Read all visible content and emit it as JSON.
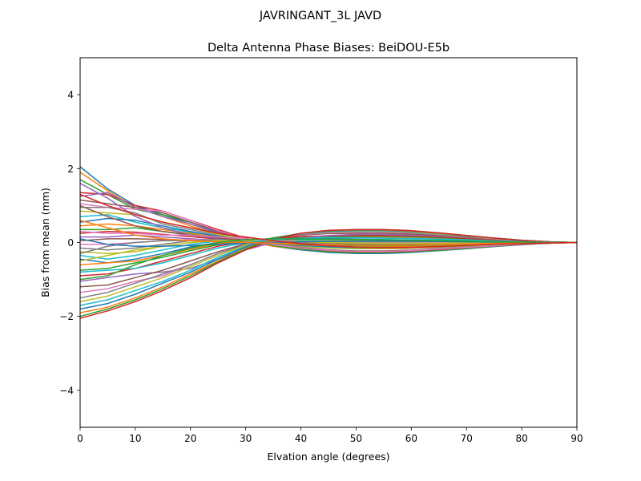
{
  "chart_data": {
    "type": "line",
    "suptitle": "JAVRINGANT_3L    JAVD",
    "title": "Delta Antenna Phase Biases: BeiDOU-E5b",
    "xlabel": "Elvation angle (degrees)",
    "ylabel": "Bias from mean (mm)",
    "xlim": [
      0,
      90
    ],
    "ylim": [
      -5,
      5
    ],
    "xticks": [
      0,
      10,
      20,
      30,
      40,
      50,
      60,
      70,
      80,
      90
    ],
    "yticks": [
      -4,
      -2,
      0,
      2,
      4
    ],
    "ytick_labels": [
      "−4",
      "−2",
      "0",
      "2",
      "4"
    ],
    "grid": false,
    "legend": "none",
    "x": [
      0,
      5,
      10,
      15,
      20,
      25,
      30,
      35,
      40,
      45,
      50,
      55,
      60,
      65,
      70,
      75,
      80,
      85,
      90
    ],
    "series_colors": [
      "#1f77b4",
      "#ff7f0e",
      "#2ca02c",
      "#d62728",
      "#9467bd",
      "#8c564b",
      "#e377c2",
      "#7f7f7f",
      "#bcbd22",
      "#17becf"
    ],
    "series": [
      {
        "values": [
          2.05,
          1.45,
          1.0,
          0.75,
          0.5,
          0.25,
          0.05,
          -0.1,
          -0.2,
          -0.27,
          -0.3,
          -0.3,
          -0.27,
          -0.22,
          -0.17,
          -0.11,
          -0.06,
          -0.02,
          0
        ]
      },
      {
        "values": [
          1.9,
          1.4,
          0.95,
          0.7,
          0.45,
          0.22,
          0.04,
          -0.1,
          -0.18,
          -0.24,
          -0.27,
          -0.27,
          -0.24,
          -0.2,
          -0.15,
          -0.1,
          -0.05,
          -0.02,
          0
        ]
      },
      {
        "values": [
          1.7,
          1.3,
          0.9,
          0.75,
          0.55,
          0.3,
          0.08,
          -0.08,
          -0.18,
          -0.25,
          -0.28,
          -0.28,
          -0.25,
          -0.21,
          -0.16,
          -0.1,
          -0.05,
          -0.02,
          0
        ]
      },
      {
        "values": [
          1.35,
          1.3,
          1.0,
          0.85,
          0.6,
          0.35,
          0.12,
          -0.05,
          -0.15,
          -0.22,
          -0.25,
          -0.25,
          -0.23,
          -0.19,
          -0.14,
          -0.09,
          -0.05,
          -0.02,
          0
        ]
      },
      {
        "values": [
          1.25,
          1.35,
          0.95,
          0.7,
          0.5,
          0.28,
          0.1,
          -0.04,
          -0.13,
          -0.2,
          -0.23,
          -0.23,
          -0.21,
          -0.17,
          -0.13,
          -0.08,
          -0.04,
          -0.01,
          0
        ]
      },
      {
        "values": [
          1.15,
          1.05,
          0.95,
          0.8,
          0.55,
          0.3,
          0.1,
          -0.05,
          -0.14,
          -0.2,
          -0.23,
          -0.23,
          -0.21,
          -0.17,
          -0.13,
          -0.08,
          -0.04,
          -0.01,
          0
        ]
      },
      {
        "values": [
          1.05,
          0.95,
          0.9,
          0.85,
          0.6,
          0.32,
          0.1,
          -0.06,
          -0.15,
          -0.21,
          -0.24,
          -0.24,
          -0.22,
          -0.18,
          -0.13,
          -0.09,
          -0.04,
          -0.01,
          0
        ]
      },
      {
        "values": [
          0.95,
          0.95,
          0.8,
          0.5,
          0.35,
          0.2,
          0.08,
          -0.02,
          -0.1,
          -0.15,
          -0.17,
          -0.17,
          -0.16,
          -0.13,
          -0.1,
          -0.06,
          -0.03,
          -0.01,
          0
        ]
      },
      {
        "values": [
          0.85,
          0.8,
          0.75,
          0.55,
          0.4,
          0.22,
          0.08,
          -0.03,
          -0.1,
          -0.15,
          -0.17,
          -0.17,
          -0.15,
          -0.12,
          -0.09,
          -0.06,
          -0.03,
          -0.01,
          0
        ]
      },
      {
        "values": [
          0.7,
          0.75,
          0.55,
          0.4,
          0.28,
          0.15,
          0.05,
          -0.03,
          -0.08,
          -0.12,
          -0.14,
          -0.14,
          -0.12,
          -0.1,
          -0.07,
          -0.05,
          -0.02,
          -0.01,
          0
        ]
      },
      {
        "values": [
          0.55,
          0.65,
          0.6,
          0.45,
          0.3,
          0.17,
          0.06,
          -0.02,
          -0.08,
          -0.11,
          -0.13,
          -0.13,
          -0.12,
          -0.1,
          -0.07,
          -0.05,
          -0.02,
          -0.01,
          0
        ]
      },
      {
        "values": [
          0.45,
          0.5,
          0.45,
          0.35,
          0.25,
          0.14,
          0.05,
          -0.02,
          -0.06,
          -0.09,
          -0.11,
          -0.11,
          -0.1,
          -0.08,
          -0.06,
          -0.04,
          -0.02,
          -0.01,
          0
        ]
      },
      {
        "values": [
          0.35,
          0.35,
          0.4,
          0.3,
          0.22,
          0.12,
          0.04,
          -0.02,
          -0.05,
          -0.08,
          -0.09,
          -0.09,
          -0.08,
          -0.07,
          -0.05,
          -0.03,
          -0.02,
          -0.01,
          0
        ]
      },
      {
        "values": [
          0.25,
          0.3,
          0.28,
          0.22,
          0.16,
          0.09,
          0.03,
          -0.01,
          -0.04,
          -0.06,
          -0.07,
          -0.07,
          -0.06,
          -0.05,
          -0.04,
          -0.03,
          -0.01,
          0,
          0
        ]
      },
      {
        "values": [
          0.15,
          0.15,
          0.2,
          0.15,
          0.1,
          0.06,
          0.02,
          -0.01,
          -0.03,
          -0.04,
          -0.05,
          -0.05,
          -0.04,
          -0.04,
          -0.03,
          -0.02,
          -0.01,
          0,
          0
        ]
      },
      {
        "values": [
          0.05,
          0.1,
          0.1,
          0.08,
          0.05,
          0.03,
          0.01,
          0,
          -0.01,
          -0.02,
          -0.02,
          -0.02,
          -0.02,
          -0.02,
          -0.01,
          -0.01,
          0,
          0,
          0
        ]
      },
      {
        "values": [
          -0.05,
          -0.05,
          0.0,
          0.05,
          0.08,
          0.06,
          0.03,
          0.01,
          0.0,
          -0.01,
          -0.01,
          -0.01,
          -0.01,
          -0.01,
          -0.01,
          0,
          0,
          0,
          0
        ]
      },
      {
        "values": [
          -0.15,
          -0.2,
          -0.15,
          -0.05,
          0.05,
          0.08,
          0.06,
          0.03,
          0.02,
          0.02,
          0.02,
          0.02,
          0.02,
          0.02,
          0.01,
          0.01,
          0,
          0,
          0
        ]
      },
      {
        "values": [
          -0.25,
          -0.3,
          -0.25,
          -0.1,
          0.0,
          0.05,
          0.06,
          0.05,
          0.05,
          0.05,
          0.05,
          0.05,
          0.05,
          0.04,
          0.03,
          0.02,
          0.01,
          0,
          0
        ]
      },
      {
        "values": [
          -0.35,
          -0.45,
          -0.35,
          -0.2,
          -0.05,
          0.04,
          0.07,
          0.07,
          0.07,
          0.08,
          0.08,
          0.08,
          0.07,
          0.06,
          0.05,
          0.03,
          0.02,
          0.01,
          0
        ]
      },
      {
        "values": [
          -0.45,
          -0.55,
          -0.45,
          -0.3,
          -0.12,
          0.0,
          0.07,
          0.09,
          0.1,
          0.11,
          0.12,
          0.12,
          0.11,
          0.09,
          0.07,
          0.05,
          0.02,
          0.01,
          0
        ]
      },
      {
        "values": [
          -0.6,
          -0.55,
          -0.5,
          -0.35,
          -0.18,
          -0.03,
          0.06,
          0.1,
          0.12,
          0.14,
          0.15,
          0.15,
          0.14,
          0.12,
          0.09,
          0.06,
          0.03,
          0.01,
          0
        ]
      },
      {
        "values": [
          -0.75,
          -0.7,
          -0.55,
          -0.4,
          -0.22,
          -0.06,
          0.05,
          0.11,
          0.14,
          0.16,
          0.17,
          0.17,
          0.16,
          0.13,
          0.1,
          0.07,
          0.03,
          0.01,
          0
        ]
      },
      {
        "values": [
          -0.9,
          -0.85,
          -0.7,
          -0.5,
          -0.3,
          -0.1,
          0.03,
          0.12,
          0.16,
          0.18,
          0.19,
          0.19,
          0.18,
          0.15,
          0.11,
          0.07,
          0.04,
          0.01,
          0
        ]
      },
      {
        "values": [
          -1.05,
          -0.95,
          -0.85,
          -0.8,
          -0.7,
          -0.45,
          -0.2,
          0.0,
          0.12,
          0.19,
          0.22,
          0.22,
          0.2,
          0.17,
          0.13,
          0.09,
          0.04,
          0.01,
          0
        ]
      },
      {
        "values": [
          -1.2,
          -1.15,
          -0.95,
          -0.75,
          -0.5,
          -0.25,
          -0.03,
          0.12,
          0.2,
          0.24,
          0.25,
          0.25,
          0.23,
          0.19,
          0.14,
          0.09,
          0.05,
          0.02,
          0
        ]
      },
      {
        "values": [
          -1.35,
          -1.25,
          -1.05,
          -0.9,
          -0.6,
          -0.3,
          -0.05,
          0.12,
          0.22,
          0.26,
          0.28,
          0.28,
          0.26,
          0.21,
          0.16,
          0.1,
          0.05,
          0.02,
          0
        ]
      },
      {
        "values": [
          -1.5,
          -1.35,
          -1.1,
          -0.85,
          -0.6,
          -0.3,
          -0.05,
          0.13,
          0.23,
          0.28,
          0.3,
          0.3,
          0.27,
          0.22,
          0.17,
          0.11,
          0.05,
          0.02,
          0
        ]
      },
      {
        "values": [
          -1.6,
          -1.45,
          -1.2,
          -0.95,
          -0.65,
          -0.35,
          -0.07,
          0.13,
          0.24,
          0.29,
          0.31,
          0.31,
          0.28,
          0.23,
          0.17,
          0.11,
          0.06,
          0.02,
          0
        ]
      },
      {
        "values": [
          -1.7,
          -1.55,
          -1.3,
          -1.05,
          -0.75,
          -0.4,
          -0.1,
          0.12,
          0.24,
          0.3,
          0.32,
          0.32,
          0.29,
          0.24,
          0.18,
          0.12,
          0.06,
          0.02,
          0
        ]
      },
      {
        "values": [
          -1.8,
          -1.65,
          -1.4,
          -1.1,
          -0.8,
          -0.45,
          -0.12,
          0.12,
          0.25,
          0.31,
          0.33,
          0.33,
          0.3,
          0.25,
          0.18,
          0.12,
          0.06,
          0.02,
          0
        ]
      },
      {
        "values": [
          -1.9,
          -1.75,
          -1.5,
          -1.2,
          -0.85,
          -0.5,
          -0.15,
          0.1,
          0.25,
          0.32,
          0.34,
          0.34,
          0.31,
          0.25,
          0.19,
          0.12,
          0.06,
          0.02,
          0
        ]
      },
      {
        "values": [
          -2.0,
          -1.8,
          -1.55,
          -1.25,
          -0.9,
          -0.52,
          -0.17,
          0.1,
          0.25,
          0.32,
          0.35,
          0.35,
          0.32,
          0.26,
          0.19,
          0.12,
          0.06,
          0.02,
          0
        ]
      },
      {
        "values": [
          -2.05,
          -1.85,
          -1.6,
          -1.3,
          -0.95,
          -0.55,
          -0.2,
          0.08,
          0.25,
          0.33,
          0.35,
          0.35,
          0.32,
          0.26,
          0.19,
          0.12,
          0.06,
          0.02,
          0
        ]
      },
      {
        "values": [
          1.6,
          1.2,
          0.7,
          0.4,
          0.2,
          0.1,
          0.05,
          0.02,
          0.0,
          -0.02,
          -0.03,
          -0.04,
          -0.04,
          -0.03,
          -0.03,
          -0.02,
          -0.01,
          0,
          0
        ]
      },
      {
        "values": [
          1.0,
          0.7,
          0.45,
          0.3,
          0.2,
          0.12,
          0.06,
          0.02,
          -0.01,
          -0.03,
          -0.05,
          -0.05,
          -0.05,
          -0.04,
          -0.03,
          -0.02,
          -0.01,
          0,
          0
        ]
      },
      {
        "values": [
          0.3,
          0.25,
          0.25,
          0.2,
          0.2,
          0.15,
          0.1,
          0.05,
          0.02,
          0.0,
          -0.01,
          -0.01,
          -0.01,
          -0.01,
          -0.01,
          0,
          0,
          0,
          0
        ]
      },
      {
        "values": [
          -0.3,
          -0.1,
          0.0,
          0.05,
          0.05,
          0.04,
          0.02,
          0.0,
          -0.02,
          -0.04,
          -0.05,
          -0.05,
          -0.05,
          -0.04,
          -0.03,
          -0.02,
          -0.01,
          0,
          0
        ]
      },
      {
        "values": [
          -0.5,
          -0.35,
          -0.2,
          -0.1,
          0.0,
          0.05,
          0.06,
          0.04,
          0.02,
          0.0,
          -0.01,
          -0.02,
          -0.02,
          -0.02,
          -0.01,
          -0.01,
          0,
          0,
          0
        ]
      },
      {
        "values": [
          -0.8,
          -0.75,
          -0.7,
          -0.55,
          -0.35,
          -0.15,
          0.0,
          0.08,
          0.12,
          0.13,
          0.13,
          0.12,
          0.11,
          0.09,
          0.07,
          0.04,
          0.02,
          0.01,
          0
        ]
      },
      {
        "values": [
          0.1,
          -0.05,
          -0.1,
          -0.1,
          -0.08,
          -0.05,
          -0.02,
          0.0,
          0.02,
          0.03,
          0.04,
          0.04,
          0.04,
          0.03,
          0.02,
          0.01,
          0.01,
          0,
          0
        ]
      },
      {
        "values": [
          0.6,
          0.4,
          0.2,
          0.1,
          0.05,
          0.02,
          0.0,
          -0.02,
          -0.04,
          -0.06,
          -0.07,
          -0.07,
          -0.07,
          -0.06,
          -0.04,
          -0.03,
          -0.01,
          0,
          0
        ]
      },
      {
        "values": [
          -1.0,
          -0.9,
          -0.6,
          -0.35,
          -0.15,
          0.0,
          0.08,
          0.1,
          0.1,
          0.09,
          0.08,
          0.07,
          0.06,
          0.05,
          0.04,
          0.02,
          0.01,
          0,
          0
        ]
      },
      {
        "values": [
          1.3,
          1.0,
          0.75,
          0.55,
          0.4,
          0.25,
          0.15,
          0.05,
          -0.03,
          -0.09,
          -0.13,
          -0.14,
          -0.13,
          -0.11,
          -0.08,
          -0.05,
          -0.03,
          -0.01,
          0
        ]
      }
    ]
  }
}
